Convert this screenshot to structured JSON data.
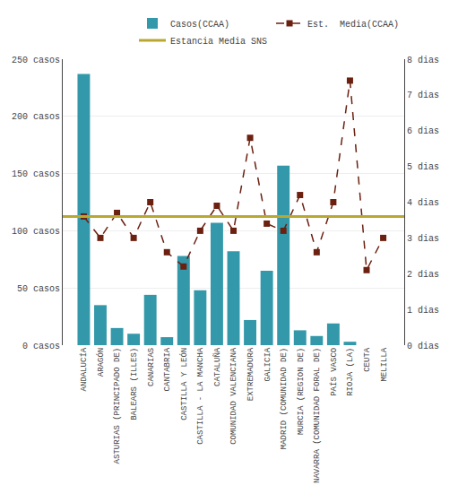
{
  "chart_data": {
    "type": "bar",
    "categories": [
      "ANDALUCÍA",
      "ARAGÓN",
      "ASTURIAS (PRINCIPADO DE)",
      "BALEARS (ILLES)",
      "CANARIAS",
      "CANTABRIA",
      "CASTILLA Y LEÓN",
      "CASTILLA - LA MANCHA",
      "CATALUÑA",
      "COMUNIDAD VALENCIANA",
      "EXTREMADURA",
      "GALICIA",
      "MADRID (COMUNIDAD DE)",
      "MURCIA (REGION DE)",
      "NAVARRA (COMUNIDAD FORAL DE)",
      "PAÍS VASCO",
      "RIOJA (LA)",
      "CEUTA",
      "MELILLA"
    ],
    "series": [
      {
        "name": "Casos(CCAA)",
        "type": "bar",
        "color": "#3399aa",
        "values": [
          237,
          35,
          15,
          10,
          44,
          7,
          78,
          48,
          107,
          82,
          22,
          65,
          157,
          13,
          8,
          19,
          3,
          0,
          0
        ]
      },
      {
        "name": "Est.  Media(CCAA)",
        "type": "line",
        "axis": "y2",
        "color": "#6B2010",
        "marker": "square",
        "line_style": "dashed",
        "values": [
          3.6,
          3.0,
          3.7,
          3.0,
          4.0,
          2.6,
          2.2,
          3.2,
          3.9,
          3.2,
          5.8,
          3.4,
          3.2,
          4.2,
          2.6,
          4.0,
          7.4,
          2.1,
          3.0
        ]
      },
      {
        "name": "Estancia Media SNS",
        "type": "hline",
        "axis": "y2",
        "color": "#B8A830",
        "value": 3.6
      }
    ],
    "ylim": [
      0,
      250
    ],
    "yticks": [
      {
        "value": 0,
        "label": "0 casos"
      },
      {
        "value": 50,
        "label": "50 casos"
      },
      {
        "value": 100,
        "label": "100 casos"
      },
      {
        "value": 150,
        "label": "150 casos"
      },
      {
        "value": 200,
        "label": "200 casos"
      },
      {
        "value": 250,
        "label": "250 casos"
      }
    ],
    "y2lim": [
      0,
      8
    ],
    "y2ticks": [
      {
        "value": 0,
        "label": "0 dias"
      },
      {
        "value": 1,
        "label": "1 dias"
      },
      {
        "value": 2,
        "label": "2 dias"
      },
      {
        "value": 3,
        "label": "3 dias"
      },
      {
        "value": 4,
        "label": "4 dias"
      },
      {
        "value": 5,
        "label": "5 dias"
      },
      {
        "value": 6,
        "label": "6 dias"
      },
      {
        "value": 7,
        "label": "7 dias"
      },
      {
        "value": 8,
        "label": "8 dias"
      }
    ],
    "grid": true,
    "legend": "top"
  }
}
